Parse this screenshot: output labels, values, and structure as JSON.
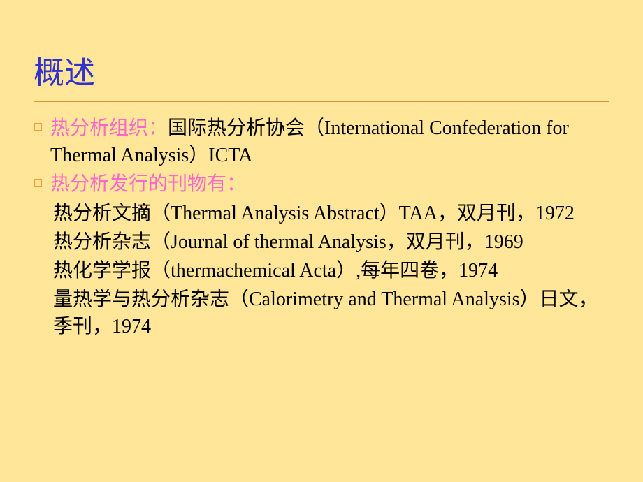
{
  "colors": {
    "background": "#ffe699",
    "title": "#3333cc",
    "divider": "#cc9933",
    "bullet_border": "#ff9933",
    "highlight": "#ff66cc",
    "body_text": "#000000"
  },
  "typography": {
    "title_fontsize": 44,
    "body_fontsize": 28,
    "title_font": "SimHei",
    "body_font": "SimSun / Times New Roman"
  },
  "title": "概述",
  "bullets": [
    {
      "label": "热分析组织：",
      "rest": "国际热分析协会（International Confederation for Thermal Analysis）ICTA"
    },
    {
      "label": "热分析发行的刊物有：",
      "rest": ""
    }
  ],
  "journals": [
    "热分析文摘（Thermal Analysis Abstract）TAA，双月刊，1972",
    "热分析杂志（Journal of thermal Analysis，双月刊，1969",
    "热化学学报（thermachemical Acta）,每年四卷，1974",
    "量热学与热分析杂志（Calorimetry and Thermal Analysis）日文，季刊，1974"
  ]
}
